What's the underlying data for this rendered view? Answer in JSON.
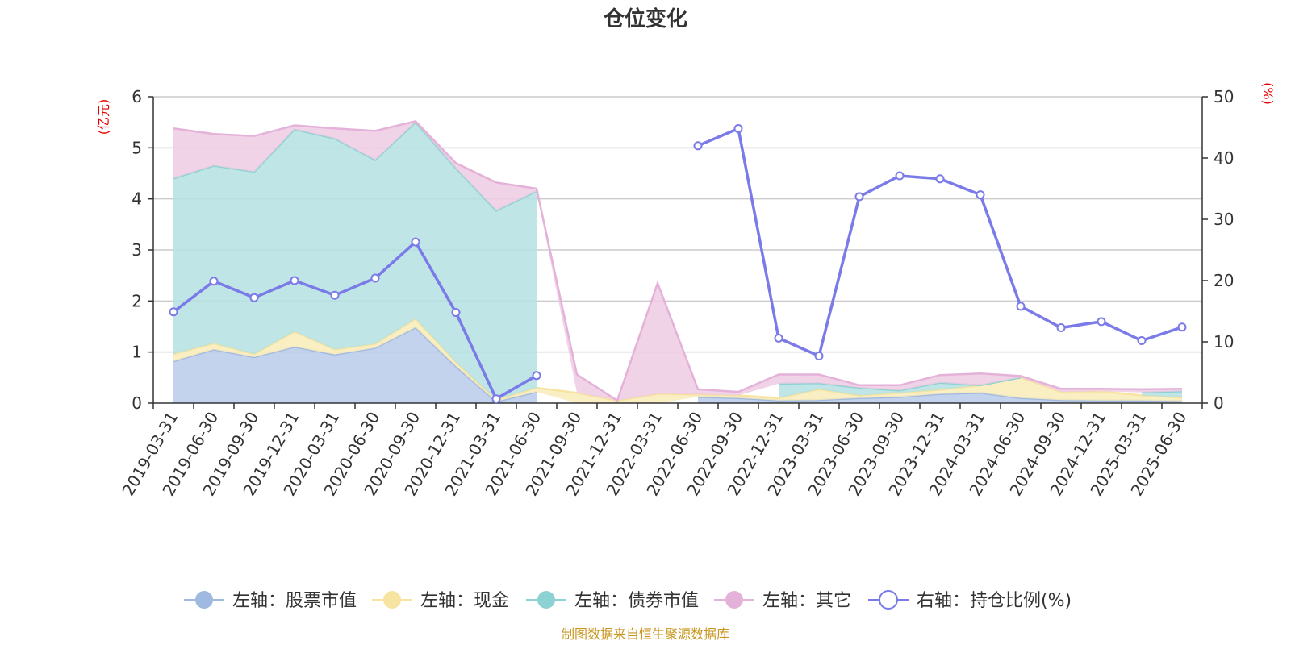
{
  "chart_data": {
    "type": "area",
    "title": "仓位变化",
    "source": "制图数据来自恒生聚源数据库",
    "y_left_label": "(亿元)",
    "y_right_label": "(%)",
    "y_left_lim": [
      0,
      6
    ],
    "y_left_ticks": [
      "0",
      "1",
      "2",
      "3",
      "4",
      "5",
      "6"
    ],
    "y_right_lim": [
      0,
      50
    ],
    "y_right_ticks": [
      "0",
      "10",
      "20",
      "30",
      "40",
      "50"
    ],
    "grid": true,
    "legend_position": "bottom",
    "categories": [
      "2019-03-31",
      "2019-06-30",
      "2019-09-30",
      "2019-12-31",
      "2020-03-31",
      "2020-06-30",
      "2020-09-30",
      "2020-12-31",
      "2021-03-31",
      "2021-06-30",
      "2021-09-30",
      "2021-12-31",
      "2022-03-31",
      "2022-06-30",
      "2022-09-30",
      "2022-12-31",
      "2023-03-31",
      "2023-06-30",
      "2023-09-30",
      "2023-12-31",
      "2024-03-31",
      "2024-06-30",
      "2024-09-30",
      "2024-12-31",
      "2025-03-31",
      "2025-06-30"
    ],
    "series": [
      {
        "name": "左轴：股票市值",
        "axis": "left",
        "kind": "area",
        "color": "#a0b9e0",
        "fill": "#b8cbea",
        "values": [
          0.82,
          1.05,
          0.9,
          1.1,
          0.95,
          1.08,
          1.48,
          0.72,
          0.03,
          0.22,
          null,
          null,
          null,
          0.12,
          0.1,
          0.05,
          0.06,
          0.1,
          0.12,
          0.18,
          0.2,
          0.1,
          0.06,
          0.05,
          0.05,
          0.04
        ]
      },
      {
        "name": "左轴：现金",
        "axis": "left",
        "kind": "area",
        "color": "#f6e4a0",
        "fill": "#f9ebb8",
        "values": [
          0.14,
          0.12,
          0.06,
          0.3,
          0.1,
          0.08,
          0.17,
          0.08,
          0.04,
          0.08,
          0.2,
          0.05,
          0.18,
          0.05,
          0.05,
          0.05,
          0.21,
          0.05,
          0.08,
          0.08,
          0.15,
          0.4,
          0.16,
          0.18,
          0.1,
          0.07
        ]
      },
      {
        "name": "左轴：债券市值",
        "axis": "left",
        "kind": "area",
        "color": "#8dd2d2",
        "fill": "#b4e1e2",
        "values": [
          3.44,
          3.48,
          3.57,
          3.96,
          4.13,
          3.6,
          3.85,
          3.8,
          3.7,
          3.85,
          null,
          null,
          null,
          null,
          null,
          0.28,
          0.12,
          0.15,
          0.05,
          0.14,
          0.0,
          0.0,
          null,
          null,
          0.06,
          0.12
        ]
      },
      {
        "name": "左轴：其它",
        "axis": "left",
        "kind": "area",
        "color": "#e4b2d9",
        "fill": "#eecbe4",
        "values": [
          0.98,
          0.62,
          0.7,
          0.08,
          0.2,
          0.57,
          0.02,
          0.1,
          0.55,
          0.05,
          0.36,
          0.0,
          2.17,
          0.1,
          0.07,
          0.18,
          0.17,
          0.05,
          0.1,
          0.15,
          0.23,
          0.03,
          0.06,
          0.05,
          0.06,
          0.05
        ]
      },
      {
        "name": "右轴：持仓比例(%)",
        "axis": "right",
        "kind": "line",
        "color": "#7a7ae8",
        "values": [
          14.9,
          19.9,
          17.2,
          20.0,
          17.6,
          20.4,
          26.3,
          14.8,
          0.7,
          4.5,
          null,
          null,
          null,
          42.0,
          44.8,
          10.6,
          7.7,
          33.7,
          37.1,
          36.6,
          34.0,
          15.8,
          12.3,
          13.3,
          10.2,
          12.4
        ]
      }
    ]
  }
}
